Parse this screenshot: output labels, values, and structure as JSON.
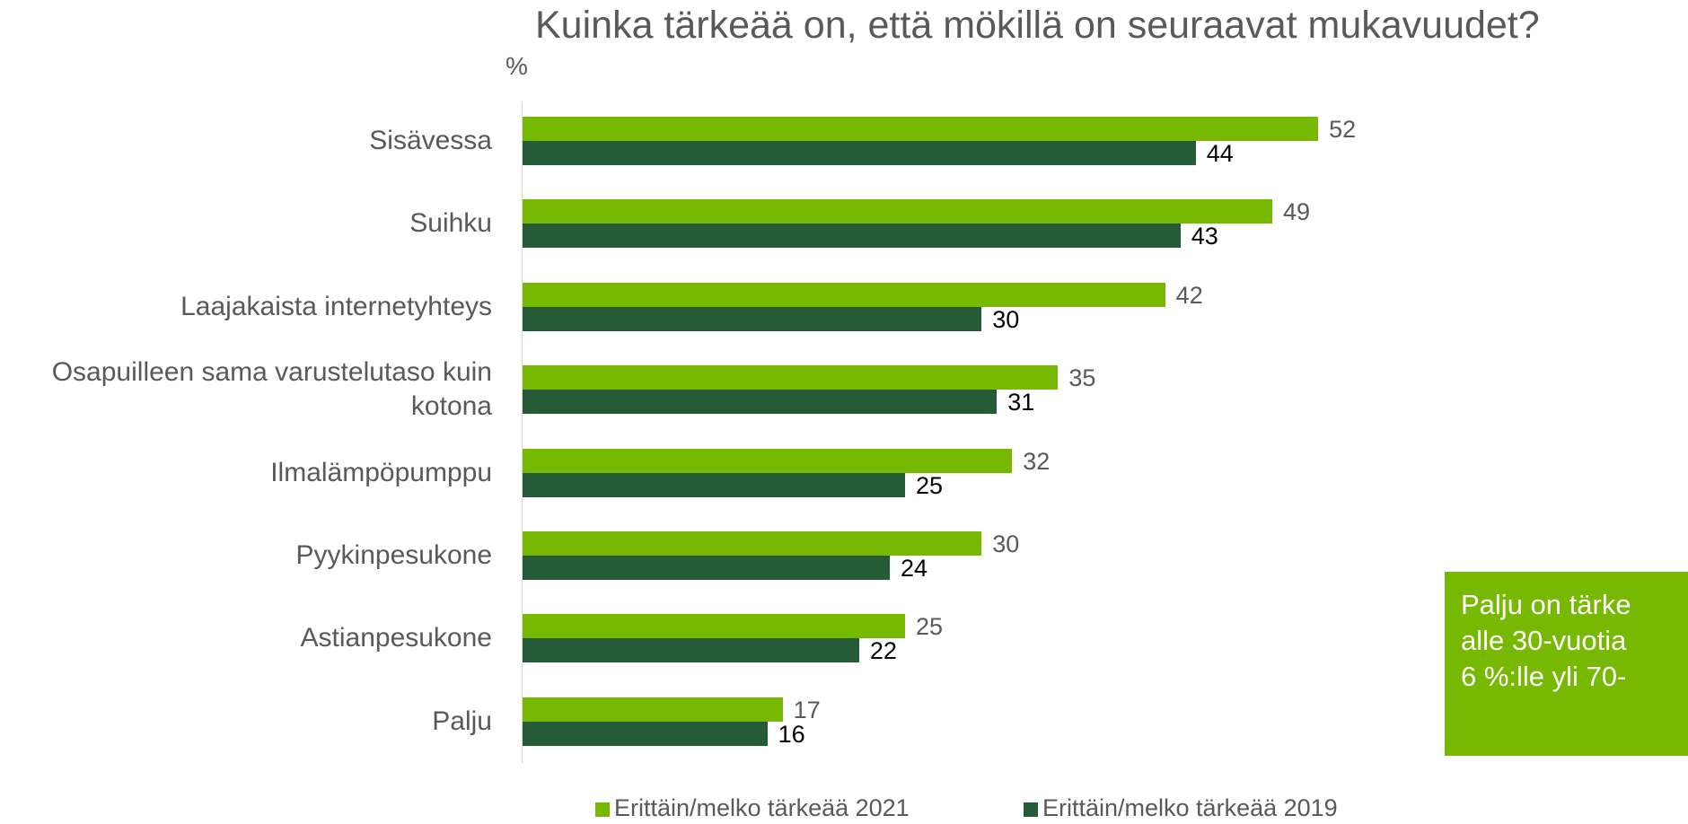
{
  "chart_data": {
    "type": "bar",
    "orientation": "horizontal",
    "title": "Kuinka tärkeää on, että mökillä on seuraavat mukavuudet?",
    "unit_label": "%",
    "categories": [
      "Sisävessa",
      "Suihku",
      "Laajakaista internetyhteys",
      "Osapuilleen sama varustelutaso kuin kotona",
      "Ilmalämpöpumppu",
      "Pyykinpesukone",
      "Astianpesukone",
      "Palju"
    ],
    "series": [
      {
        "name": "Erittäin/melko tärkeää 2021",
        "color": "#76b900",
        "label_color": "#595959",
        "values": [
          52,
          49,
          42,
          35,
          32,
          30,
          25,
          17
        ]
      },
      {
        "name": "Erittäin/melko tärkeää 2019",
        "color": "#255c37",
        "label_color": "#000000",
        "values": [
          44,
          43,
          30,
          31,
          25,
          24,
          22,
          16
        ]
      }
    ],
    "legend": "bottom",
    "annotation": {
      "lines": [
        "Palju on tärke",
        "alle 30-vuotia",
        "6 %:lle yli 70-"
      ],
      "color": "#76b900"
    }
  }
}
